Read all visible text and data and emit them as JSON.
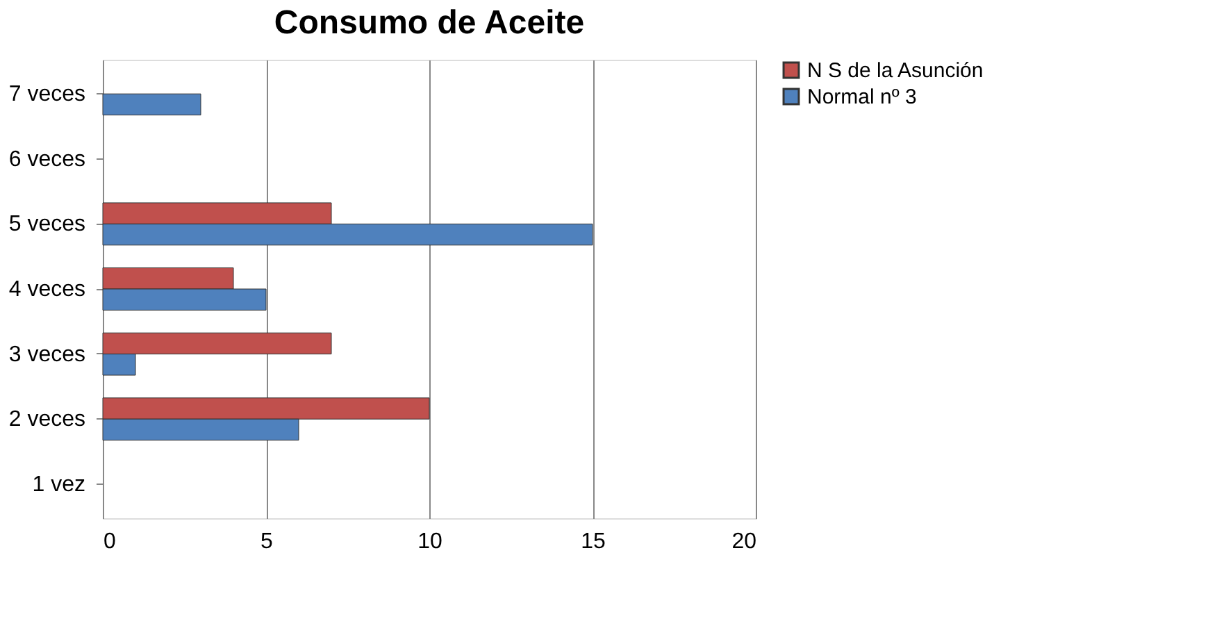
{
  "chart_data": {
    "type": "bar",
    "orientation": "horizontal",
    "title": "Consumo de Aceite",
    "categories": [
      "7 veces",
      "6 veces",
      "5 veces",
      "4 veces",
      "3 veces",
      "2 veces",
      "1 vez"
    ],
    "series": [
      {
        "name": "N S de la Asunción",
        "color": "#c0504d",
        "values": [
          null,
          null,
          7,
          4,
          7,
          10,
          null
        ]
      },
      {
        "name": "Normal nº 3",
        "color": "#4f81bd",
        "values": [
          3,
          null,
          15,
          5,
          1,
          6,
          null
        ]
      }
    ],
    "xlim": [
      0,
      20
    ],
    "xticks": [
      0,
      5,
      10,
      15,
      20
    ],
    "grid": "x",
    "legend": "right"
  }
}
